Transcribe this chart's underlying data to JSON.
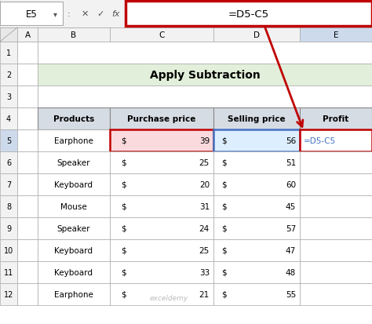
{
  "title": "Apply Subtraction",
  "formula_bar_cell": "E5",
  "formula_bar_formula": "=D5-C5",
  "header_row": [
    "Products",
    "Purchase price",
    "Selling price",
    "Profit"
  ],
  "rows": [
    [
      "Earphone",
      39,
      56
    ],
    [
      "Speaker",
      25,
      51
    ],
    [
      "Keyboard",
      20,
      60
    ],
    [
      "Mouse",
      31,
      45
    ],
    [
      "Speaker",
      24,
      57
    ],
    [
      "Keyboard",
      25,
      47
    ],
    [
      "Keyboard",
      33,
      48
    ],
    [
      "Earphone",
      21,
      55
    ]
  ],
  "row_numbers": [
    "1",
    "2",
    "3",
    "4",
    "5",
    "6",
    "7",
    "8",
    "9",
    "10",
    "11",
    "12"
  ],
  "col_letters": [
    "A",
    "B",
    "C",
    "D",
    "E"
  ],
  "bg_color": "#FFFFFF",
  "header_bg": "#D6DCE4",
  "title_bg": "#E2EFDA",
  "formula_bar_bg": "#F2F2F2",
  "formula_box_border": "#C00000",
  "purchase_highlight": "#FADADD",
  "selling_highlight": "#DDEEFF",
  "formula_text_color": "#4472C4",
  "arrow_color": "#C00000",
  "selected_col_bg": "#CCDAEC",
  "selected_row_bg": "#CCDAEC",
  "watermark": "exceldemy"
}
